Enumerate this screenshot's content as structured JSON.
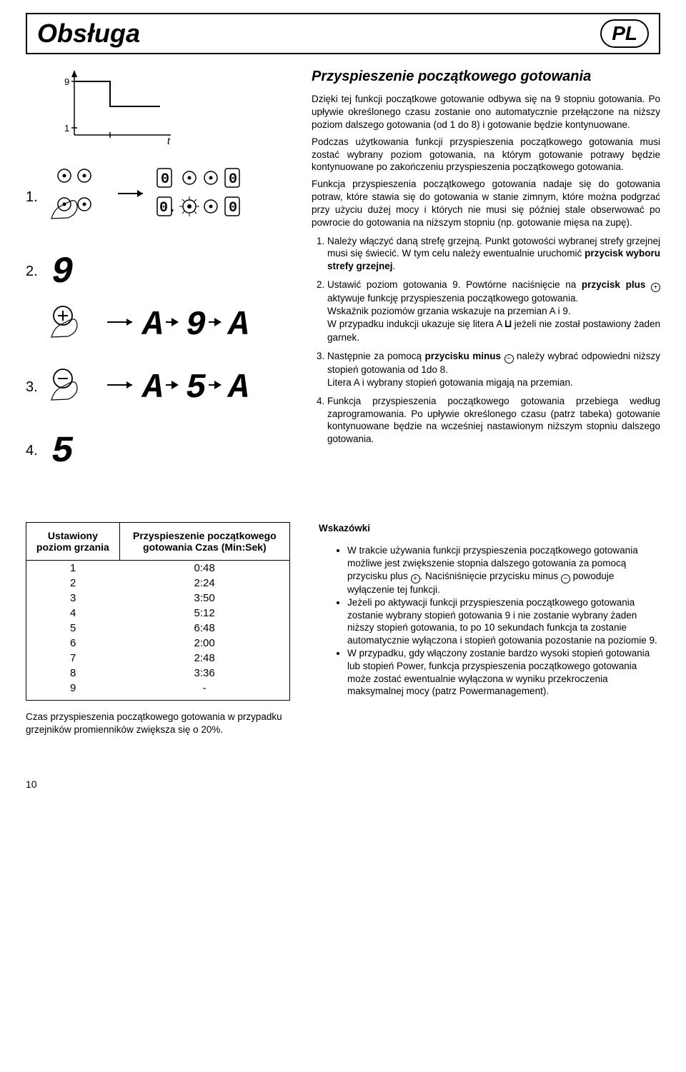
{
  "header": {
    "title": "Obsługa",
    "lang": "PL"
  },
  "section": {
    "heading": "Przyspieszenie początkowego gotowania",
    "p1": "Dzięki tej funkcji początkowe gotowanie odbywa się na 9 stopniu gotowania. Po upływie określonego czasu zostanie ono automatycznie przełączone na niższy poziom dalszego gotowania (od 1 do 8) i gotowanie będzie kontynuowane.",
    "p2": "Podczas użytkowania funkcji przyspieszenia początkowego gotowania musi zostać wybrany poziom gotowania, na którym gotowanie potrawy będzie kontynuowane po zakończeniu przyspieszenia początkowego gotowania.",
    "p3": "Funkcja przyspieszenia początkowego gotowania nadaje się do gotowania potraw, które stawia się do gotowania w stanie zimnym, które można podgrzać przy użyciu dużej mocy i których nie musi się później stale obserwować po powrocie do gotowania na niższym stopniu (np. gotowanie mięsa na zupę).",
    "steps": [
      {
        "t1": "Należy włączyć daną strefę grzejną. Punkt gotowości wybranej strefy grzejnej musi się świecić. W tym celu należy ewentualnie uruchomić ",
        "b1": "przycisk wyboru strefy grzejnej",
        "t2": "."
      },
      {
        "t1": "Ustawić poziom gotowania 9. Powtórne naciśnięcie na ",
        "b1": "przycisk plus",
        "t2": " aktywuje funkcję przyspieszenia początkowego gotowania.",
        "t3": "Wskaźnik poziomów grzania wskazuje na przemian A i 9.",
        "t4": "W przypadku indukcji ukazuje się litera A ",
        "t5": " jeżeli nie został postawiony żaden garnek."
      },
      {
        "t1": "Następnie za pomocą ",
        "b1": "przycisku minus",
        "t2": " należy wybrać odpowiedni niższy stopień gotowania od 1do 8.",
        "t3": "Litera A i wybrany stopień gotowania migają na przemian."
      },
      {
        "t1": "Funkcja przyspieszenia początkowego gotowania przebiega według zaprogramowania. Po upływie określonego czasu (patrz tabeka) gotowanie kontynuowane będzie na wcześniej nastawionym niższym stopniu dalszego gotowania."
      }
    ]
  },
  "leftSteps": [
    "1.",
    "2.",
    "3.",
    "4."
  ],
  "graph": {
    "y_top": "9",
    "y_bot": "1",
    "x_label": "t"
  },
  "table": {
    "col1": "Ustawiony poziom grzania",
    "col2": "Przyspieszenie początkowego gotowania Czas (Min:Sek)",
    "rows": [
      [
        "1",
        "0:48"
      ],
      [
        "2",
        "2:24"
      ],
      [
        "3",
        "3:50"
      ],
      [
        "4",
        "5:12"
      ],
      [
        "5",
        "6:48"
      ],
      [
        "6",
        "2:00"
      ],
      [
        "7",
        "2:48"
      ],
      [
        "8",
        "3:36"
      ],
      [
        "9",
        "-"
      ]
    ],
    "note": "Czas przyspieszenia początkowego gotowania w przypadku grzejników promienników zwiększa się o 20%."
  },
  "hints": {
    "title": "Wskazówki",
    "items": [
      {
        "t1": "W trakcie używania funkcji przyspieszenia początkowego gotowania możliwe jest zwiększenie stopnia dalszego gotowania za pomocą przycisku plus ",
        "t2": ". Naciśniśnięcie przycisku minus ",
        "t3": " powoduje wyłączenie tej funkcji."
      },
      {
        "t1": "Jeżeli po aktywacji funkcji przyspieszenia początkowego gotowania zostanie wybrany stopień gotowania 9 i nie zostanie wybrany żaden niższy stopień gotowania, to po 10 sekundach funkcja ta zostanie automatycznie wyłączona i stopień gotowania pozostanie na poziomie 9."
      },
      {
        "t1": "W przypadku, gdy włączony zostanie bardzo wysoki stopień gotowania lub stopień Power, funkcja przyspieszenia początkowego gotowania może zostać ewentualnie wyłączona w wyniku przekroczenia maksymalnej mocy (patrz Powermanagement)."
      }
    ]
  },
  "pageNumber": "10"
}
